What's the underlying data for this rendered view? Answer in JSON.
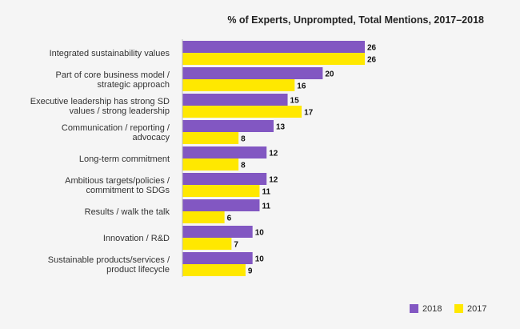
{
  "chart_data": {
    "type": "bar",
    "orientation": "horizontal",
    "title": "% of Experts, Unprompted, Total Mentions, 2017–2018",
    "categories": [
      [
        "Integrated sustainability values"
      ],
      [
        "Part of core business model /",
        "strategic approach"
      ],
      [
        "Executive leadership has strong SD",
        "values / strong leadership"
      ],
      [
        "Communication / reporting /",
        "advocacy"
      ],
      [
        "Long-term commitment"
      ],
      [
        "Ambitious targets/policies /",
        "commitment to SDGs"
      ],
      [
        "Results / walk the talk"
      ],
      [
        "Innovation / R&D"
      ],
      [
        "Sustainable products/services /",
        "product lifecycle"
      ]
    ],
    "series": [
      {
        "name": "2018",
        "color": "#8257c2",
        "values": [
          26,
          20,
          15,
          13,
          12,
          12,
          11,
          10,
          10
        ]
      },
      {
        "name": "2017",
        "color": "#ffe800",
        "values": [
          26,
          16,
          17,
          8,
          8,
          11,
          6,
          7,
          9
        ]
      }
    ],
    "xlim": [
      0,
      26
    ],
    "grid": false,
    "legend_position": "bottom-right"
  }
}
